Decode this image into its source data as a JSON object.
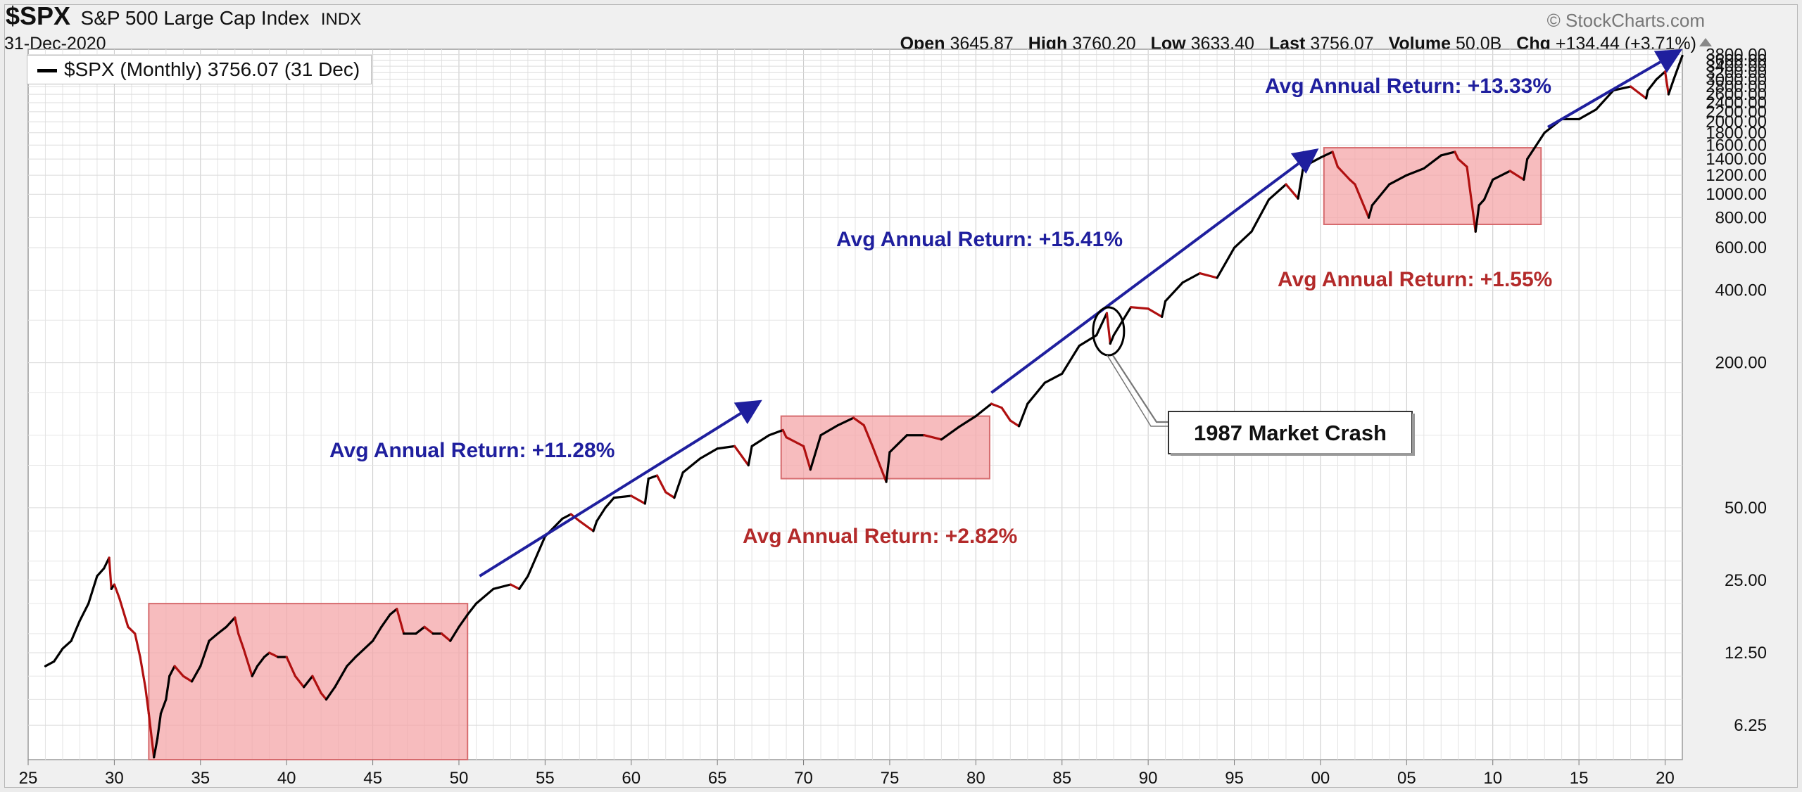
{
  "header": {
    "symbol": "$SPX",
    "name": "S&P 500 Large Cap Index",
    "exchange": "INDX",
    "brand": "© StockCharts.com",
    "date": "31-Dec-2020",
    "quote": {
      "open_label": "Open",
      "open": "3645.87",
      "high_label": "High",
      "high": "3760.20",
      "low_label": "Low",
      "low": "3633.40",
      "last_label": "Last",
      "last": "3756.07",
      "volume_label": "Volume",
      "volume": "50.0B",
      "chg_label": "Chg",
      "chg": "+134.44 (+3.71%)"
    }
  },
  "legend": {
    "label": "$SPX (Monthly) 3756.07 (31 Dec)"
  },
  "colors": {
    "up": "#000000",
    "down": "#b01010",
    "box_fill": "#f4a6a8",
    "box_stroke": "#d66b6e",
    "blue": "#1f1f9e",
    "red": "#b32a2a",
    "grid": "#d6d6d6",
    "plot_bg": "#ffffff"
  },
  "chart_data": {
    "type": "line",
    "title": "$SPX S&P 500 Large Cap Index",
    "y_scale": "log",
    "x_range": [
      1925,
      2021
    ],
    "y_range": [
      4.5,
      4000
    ],
    "x_tick_labels": [
      "25",
      "30",
      "35",
      "40",
      "45",
      "50",
      "55",
      "60",
      "65",
      "70",
      "75",
      "80",
      "85",
      "90",
      "95",
      "00",
      "05",
      "10",
      "15",
      "20"
    ],
    "y_tick_labels": [
      "6.25",
      "12.50",
      "25.00",
      "50.00",
      "200.00",
      "400.00",
      "600.00",
      "800.00",
      "1000.00",
      "1200.00",
      "1400.00",
      "1600.00",
      "1800.00",
      "2000.00",
      "2200.00",
      "2400.00",
      "2600.00",
      "2800.00",
      "3000.00",
      "3200.00",
      "3400.00",
      "3600.00",
      "3800.00"
    ],
    "series": [
      {
        "name": "$SPX (Monthly)",
        "x": [
          1926,
          1926.5,
          1927,
          1927.5,
          1928,
          1928.5,
          1929,
          1929.4,
          1929.7,
          1929.83,
          1930,
          1930.3,
          1930.8,
          1931.2,
          1931.5,
          1931.8,
          1932,
          1932.3,
          1932.5,
          1932.7,
          1933,
          1933.2,
          1933.5,
          1934,
          1934.5,
          1935,
          1935.5,
          1936,
          1936.5,
          1937,
          1937.2,
          1937.5,
          1938,
          1938.3,
          1938.7,
          1939,
          1939.5,
          1940,
          1940.5,
          1941,
          1941.5,
          1942,
          1942.3,
          1942.8,
          1943.5,
          1944,
          1945,
          1945.5,
          1946,
          1946.4,
          1946.8,
          1947.5,
          1948,
          1948.5,
          1949,
          1949.5,
          1950,
          1950.5,
          1951,
          1952,
          1953,
          1953.5,
          1954,
          1955,
          1956,
          1956.5,
          1957,
          1957.8,
          1958,
          1958.5,
          1959,
          1960,
          1960.8,
          1961,
          1961.5,
          1962,
          1962.5,
          1963,
          1964,
          1965,
          1966,
          1966.8,
          1967,
          1968,
          1968.8,
          1969,
          1970,
          1970.4,
          1971,
          1972,
          1972.9,
          1973.5,
          1974,
          1974.8,
          1975,
          1976,
          1977,
          1978,
          1979,
          1980,
          1980.9,
          1981.5,
          1982,
          1982.5,
          1983,
          1984,
          1985,
          1986,
          1987,
          1987.6,
          1987.8,
          1988,
          1989,
          1990,
          1990.8,
          1991,
          1992,
          1993,
          1994,
          1995,
          1996,
          1997,
          1998,
          1998.7,
          1999,
          2000,
          2000.7,
          2001,
          2001.7,
          2002,
          2002.8,
          2003,
          2004,
          2005,
          2006,
          2007,
          2007.8,
          2008,
          2008.5,
          2009,
          2009.2,
          2009.5,
          2010,
          2011,
          2011.8,
          2012,
          2013,
          2014,
          2015,
          2016,
          2017,
          2018,
          2018.9,
          2019,
          2019.5,
          2020,
          2020.2,
          2020.5,
          2021
        ],
        "y": [
          11,
          11.5,
          13,
          14,
          17,
          20,
          26,
          28,
          31,
          23,
          24,
          21,
          16,
          15,
          12,
          9,
          7,
          4.6,
          5.5,
          7,
          8,
          10,
          11,
          10,
          9.5,
          11,
          14,
          15,
          16,
          17.5,
          15,
          13,
          10,
          11,
          12,
          12.5,
          12,
          12,
          10,
          9,
          10,
          8.5,
          8,
          9,
          11,
          12,
          14,
          16,
          18,
          19,
          15,
          15,
          16,
          15,
          15,
          14,
          16,
          18,
          20,
          23,
          24,
          23,
          26,
          38,
          45,
          47,
          44,
          40,
          44,
          50,
          55,
          56,
          52,
          66,
          68,
          58,
          55,
          70,
          80,
          88,
          90,
          75,
          90,
          100,
          105,
          98,
          90,
          72,
          100,
          110,
          118,
          110,
          90,
          64,
          85,
          100,
          100,
          96,
          108,
          120,
          135,
          130,
          115,
          109,
          135,
          165,
          180,
          235,
          260,
          321,
          240,
          260,
          340,
          335,
          310,
          360,
          430,
          470,
          450,
          600,
          700,
          950,
          1100,
          960,
          1300,
          1420,
          1500,
          1300,
          1150,
          1100,
          800,
          900,
          1100,
          1200,
          1280,
          1450,
          1500,
          1400,
          1300,
          700,
          900,
          950,
          1150,
          1250,
          1150,
          1400,
          1800,
          2050,
          2050,
          2250,
          2700,
          2800,
          2500,
          2700,
          3000,
          3230,
          2600,
          3000,
          3756
        ]
      }
    ],
    "shaded_ranges": [
      {
        "x": [
          1932,
          1950.5
        ],
        "y": [
          4.5,
          20
        ],
        "annotation": ""
      },
      {
        "x": [
          1968.7,
          1980.8
        ],
        "y": [
          66,
          120
        ],
        "annotation": "Avg Annual Return:  +2.82%"
      },
      {
        "x": [
          2000.2,
          2012.8
        ],
        "y": [
          750,
          1560
        ],
        "annotation": "Avg Annual Return:  +1.55%"
      }
    ],
    "trend_arrows": [
      {
        "x": [
          1951.2,
          1967.6
        ],
        "y": [
          26,
          140
        ],
        "annotation": "Avg Annual Return:  +11.28%"
      },
      {
        "x": [
          1980.9,
          1999.9
        ],
        "y": [
          150,
          1550
        ],
        "annotation": "Avg Annual Return:  +15.41%"
      },
      {
        "x": [
          2013.2,
          2021
        ],
        "y": [
          1900,
          4000
        ],
        "annotation": "Avg Annual Return:  +13.33%"
      }
    ],
    "callouts": [
      {
        "label": "1987 Market Crash",
        "x": 1987.7,
        "y": 270
      }
    ],
    "grid": true,
    "legend_position": "top-left"
  }
}
